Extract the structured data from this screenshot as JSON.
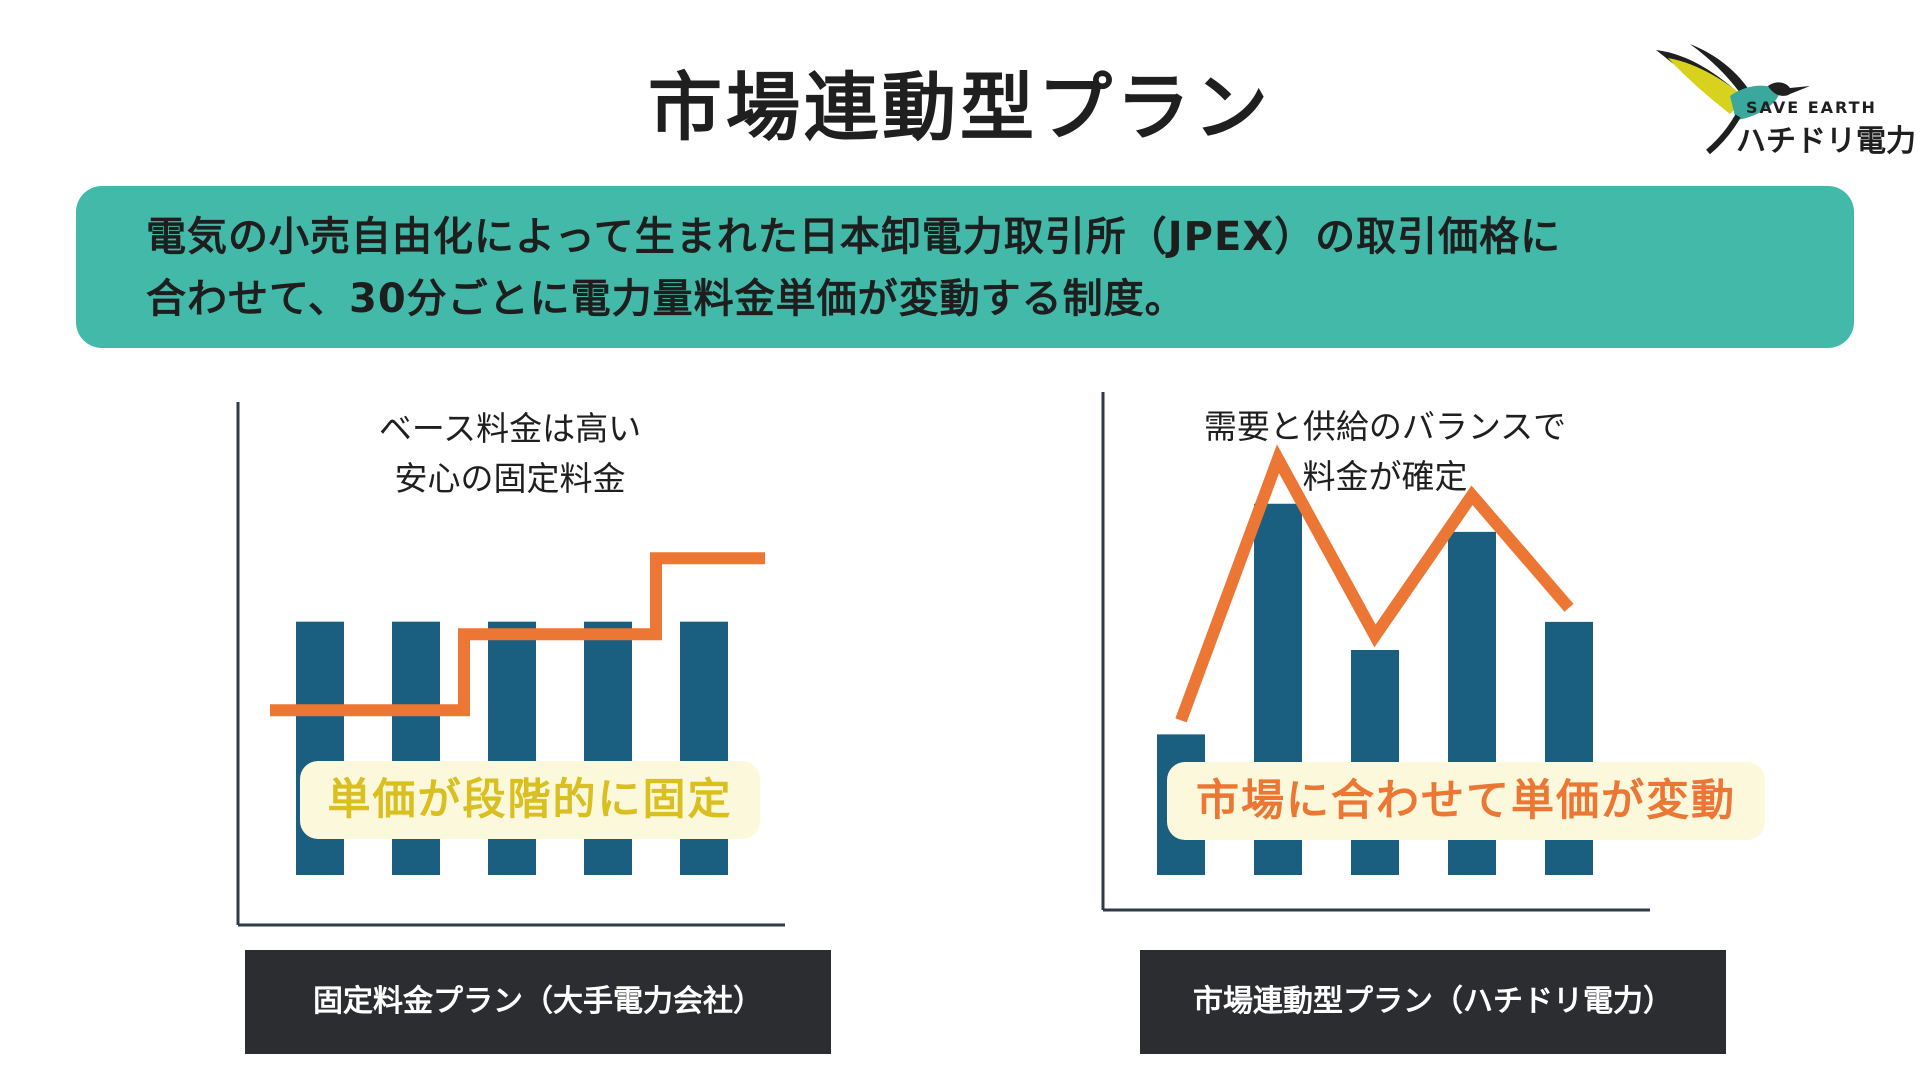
{
  "page": {
    "title": "市場連動型プラン"
  },
  "logo": {
    "top_text": "SAVE EARTH",
    "bottom_text": "ハチドリ電力"
  },
  "intro": {
    "line1": "電気の小売自由化によって生まれた日本卸電力取引所（JPEX）の取引価格に",
    "line2": "合わせて、30分ごとに電力量料金単価が変動する制度。"
  },
  "colors": {
    "teal": "#43b9aa",
    "bar": "#1a5f80",
    "line": "#ec7634",
    "callout_bg": "#fcf8dc",
    "callout_left_text": "#d9bf20",
    "callout_right_text": "#ec7634",
    "label_bg": "#2c2d30"
  },
  "chart_data": [
    {
      "type": "bar",
      "caption": [
        "ベース料金は高い",
        "安心の固定料金"
      ],
      "callout": "単価が段階的に固定",
      "label": "固定料金プラン（大手電力会社）",
      "values": [
        100,
        100,
        100,
        100,
        100
      ],
      "line": {
        "style": "step",
        "values": [
          65,
          65,
          95,
          95,
          125
        ],
        "ends": [
          65,
          125
        ]
      },
      "ylim": [
        0,
        150
      ]
    },
    {
      "type": "bar",
      "caption": [
        "需要と供給のバランスで",
        "料金が確定"
      ],
      "callout": "市場に合わせて単価が変動",
      "label": "市場連動型プラン（ハチドリ電力）",
      "values": [
        50,
        132,
        80,
        122,
        90
      ],
      "line": {
        "style": "polyline",
        "values": [
          55,
          148,
          85,
          135,
          95
        ]
      },
      "ylim": [
        0,
        160
      ]
    }
  ]
}
